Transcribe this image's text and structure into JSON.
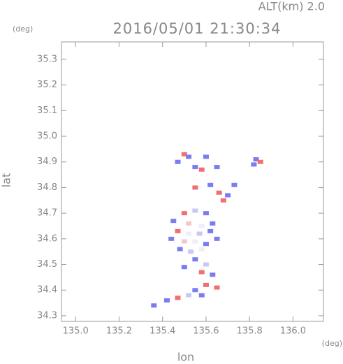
{
  "chart_data": {
    "type": "scatter",
    "title": "2016/05/01 21:30:34",
    "annotation": "ALT(km) 2.0",
    "x_label": "lon",
    "y_label": "lat",
    "x_unit": "(deg)",
    "y_unit": "(deg)",
    "xlim": [
      134.935,
      136.14
    ],
    "ylim": [
      34.278,
      35.368
    ],
    "xticks": [
      {
        "value": 135,
        "label": "135.0"
      },
      135.2,
      135.4,
      135.6,
      135.8,
      {
        "value": 136,
        "label": "136.0"
      }
    ],
    "yticks": [
      34.3,
      34.4,
      34.5,
      34.6,
      34.7,
      34.8,
      34.9,
      {
        "value": 35,
        "label": "35.0"
      },
      35.1,
      35.2,
      35.3
    ],
    "x": [
      135.5,
      135.52,
      135.47,
      135.55,
      135.6,
      135.58,
      135.65,
      135.55,
      135.62,
      135.66,
      135.7,
      135.73,
      135.68,
      135.83,
      135.85,
      135.82,
      135.5,
      135.55,
      135.6,
      135.45,
      135.52,
      135.58,
      135.63,
      135.47,
      135.52,
      135.57,
      135.62,
      135.44,
      135.5,
      135.55,
      135.6,
      135.65,
      135.48,
      135.53,
      135.58,
      135.55,
      135.6,
      135.58,
      135.63,
      135.5,
      135.6,
      135.65,
      135.55,
      135.52,
      135.47,
      135.42,
      135.58,
      135.36
    ],
    "y": [
      34.93,
      34.92,
      34.9,
      34.88,
      34.92,
      34.87,
      34.88,
      34.8,
      34.81,
      34.78,
      34.77,
      34.81,
      34.75,
      34.91,
      34.9,
      34.89,
      34.7,
      34.71,
      34.7,
      34.67,
      34.66,
      34.65,
      34.66,
      34.63,
      34.62,
      34.62,
      34.63,
      34.6,
      34.59,
      34.59,
      34.58,
      34.6,
      34.56,
      34.55,
      34.56,
      34.52,
      34.5,
      34.47,
      34.46,
      34.49,
      34.42,
      34.41,
      34.4,
      34.38,
      34.37,
      34.36,
      34.38,
      34.34
    ],
    "colors": [
      "#f07070",
      "#7a7cf0",
      "#7a7cf0",
      "#7a7cf0",
      "#7a7cf0",
      "#f07070",
      "#7a7cf0",
      "#f07070",
      "#7a7cf0",
      "#f07070",
      "#7a7cf0",
      "#7a7cf0",
      "#f07070",
      "#7a7cf0",
      "#f07070",
      "#7a7cf0",
      "#f07070",
      "#c8c8f5",
      "#7a7cf0",
      "#7a7cf0",
      "#f5c8c8",
      "#eeeef8",
      "#7a7cf0",
      "#f07070",
      "#eeeef8",
      "#c8c8f5",
      "#7a7cf0",
      "#7a7cf0",
      "#f5c8c8",
      "#eeeef8",
      "#7a7cf0",
      "#7a7cf0",
      "#7a7cf0",
      "#c8c8f5",
      "#eeeef8",
      "#7a7cf0",
      "#c8c8f5",
      "#f07070",
      "#7a7cf0",
      "#7a7cf0",
      "#f07070",
      "#f07070",
      "#7a7cf0",
      "#c8c8f5",
      "#f07070",
      "#7a7cf0",
      "#7a7cf0",
      "#7a7cf0"
    ]
  }
}
